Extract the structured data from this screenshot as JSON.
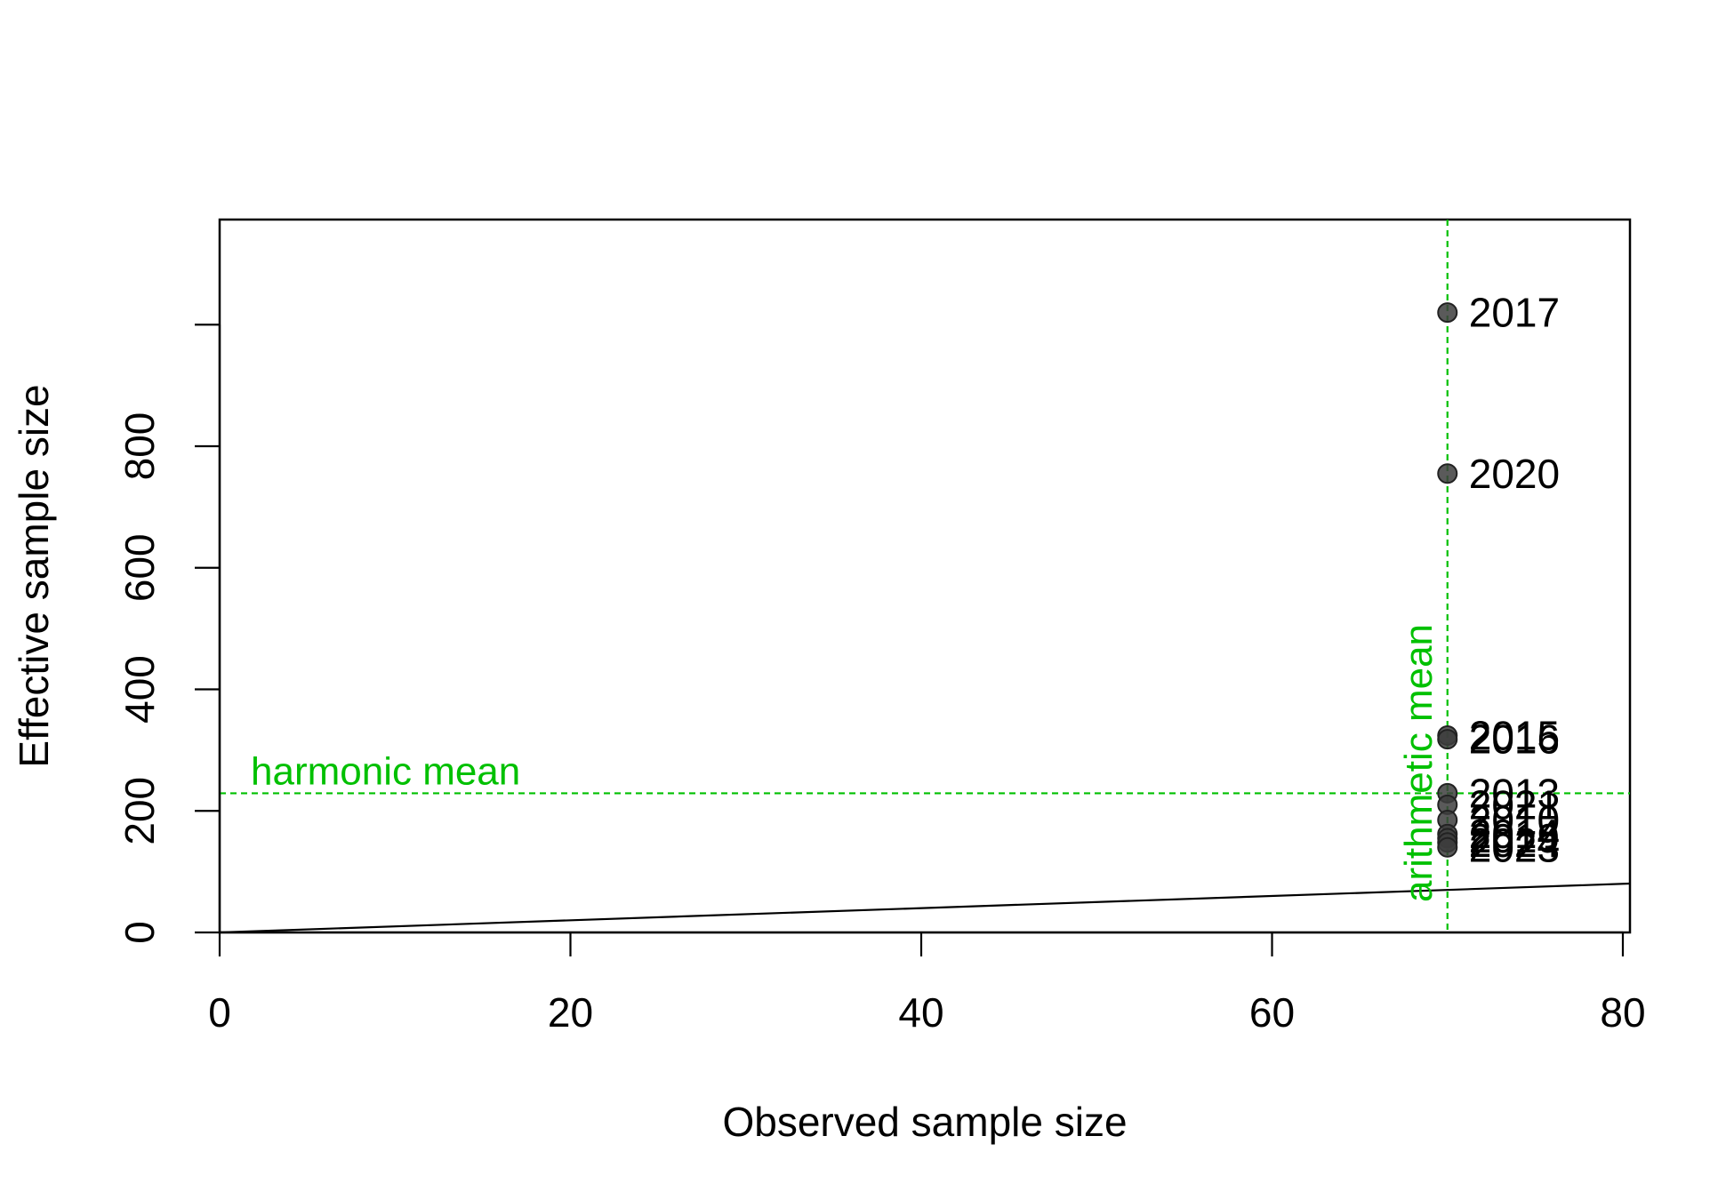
{
  "chart_data": {
    "type": "scatter",
    "xlabel": "Observed sample size",
    "ylabel": "Effective sample size",
    "xlim": [
      0,
      80
    ],
    "ylim": [
      0,
      1000
    ],
    "x_ticks": [
      0,
      20,
      40,
      60,
      80
    ],
    "y_ticks": [
      0,
      200,
      400,
      600,
      800
    ],
    "x_tick_labels": [
      "0",
      "20",
      "40",
      "60",
      "80"
    ],
    "y_tick_labels": [
      "0",
      "200",
      "400",
      "600",
      "800"
    ],
    "grid": false,
    "reference_line": {
      "type": "identity",
      "slope": 1,
      "intercept": 0
    },
    "points": [
      {
        "x": 70,
        "y": 1020,
        "label": "2017"
      },
      {
        "x": 70,
        "y": 755,
        "label": "2020"
      },
      {
        "x": 70,
        "y": 324,
        "label": "2015"
      },
      {
        "x": 70,
        "y": 318,
        "label": "2016"
      },
      {
        "x": 70,
        "y": 229,
        "label": "2013"
      },
      {
        "x": 70,
        "y": 210,
        "label": "2021"
      },
      {
        "x": 70,
        "y": 185,
        "label": "2010"
      },
      {
        "x": 70,
        "y": 162,
        "label": "2014"
      },
      {
        "x": 70,
        "y": 155,
        "label": "2019"
      },
      {
        "x": 70,
        "y": 148,
        "label": "2024"
      },
      {
        "x": 70,
        "y": 140,
        "label": "2023"
      }
    ],
    "harmonic_mean": {
      "value": 229,
      "label": "harmonic mean"
    },
    "arithmetic_mean": {
      "value": 70,
      "label": "arithmetic mean"
    },
    "colors": {
      "point_fill": "#3d3d3d",
      "point_stroke": "#222222",
      "mean_line": "#00c000",
      "axis": "#000000"
    }
  }
}
